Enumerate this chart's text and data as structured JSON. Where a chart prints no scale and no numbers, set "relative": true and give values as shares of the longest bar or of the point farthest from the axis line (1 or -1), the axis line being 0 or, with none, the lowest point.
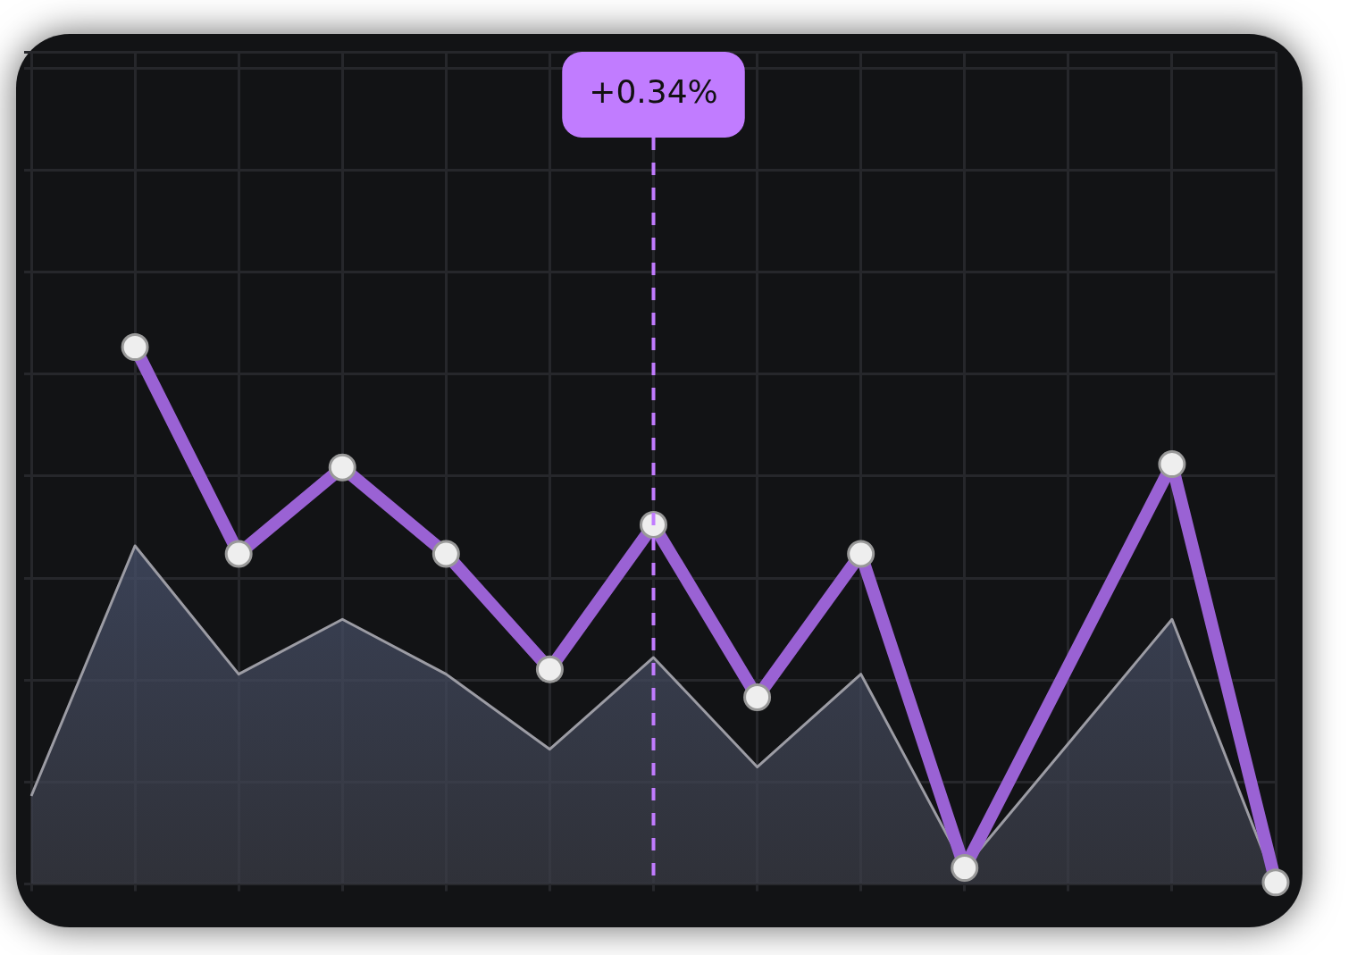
{
  "chart_data": {
    "type": "line",
    "relative": true,
    "grid": true,
    "legend": false,
    "categories": [
      null,
      null,
      null,
      null,
      null,
      null,
      null,
      null,
      null,
      null,
      null,
      null,
      null
    ],
    "series": [
      {
        "color": "#9a62d4",
        "marker": "circle",
        "values": [
          null,
          1.0,
          0.615,
          0.776,
          0.615,
          0.4,
          0.669,
          0.348,
          0.615,
          0.03,
          null,
          0.782,
          0.003
        ]
      },
      {
        "type": "area",
        "color": "#9c9ca4",
        "values": [
          0.164,
          0.63,
          0.391,
          0.493,
          0.391,
          0.251,
          0.422,
          0.218,
          0.391,
          0.03,
          null,
          0.493,
          0.0
        ]
      }
    ],
    "annotations": [
      "+0.34%"
    ]
  }
}
